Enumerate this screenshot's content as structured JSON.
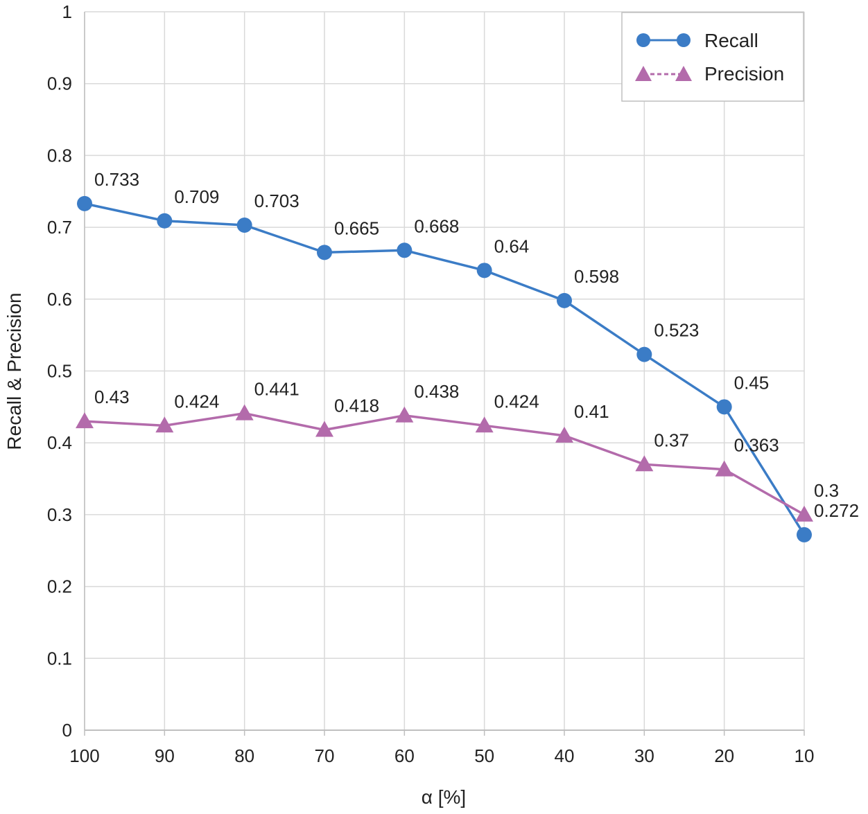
{
  "chart_data": {
    "type": "line",
    "title": "",
    "xlabel": "α [%]",
    "ylabel": "Recall & Precision",
    "categories": [
      "100",
      "90",
      "80",
      "70",
      "60",
      "50",
      "40",
      "30",
      "20",
      "10"
    ],
    "ylim": [
      0,
      1
    ],
    "yticks": [
      "0",
      "0.1",
      "0.2",
      "0.3",
      "0.4",
      "0.5",
      "0.6",
      "0.7",
      "0.8",
      "0.9",
      "1"
    ],
    "grid": true,
    "legend_position": "top-right",
    "series": [
      {
        "name": "Recall",
        "marker": "circle",
        "color": "#3b7cc6",
        "values": [
          0.733,
          0.709,
          0.703,
          0.665,
          0.668,
          0.64,
          0.598,
          0.523,
          0.45,
          0.272
        ],
        "labels": [
          "0.733",
          "0.709",
          "0.703",
          "0.665",
          "0.668",
          "0.64",
          "0.598",
          "0.523",
          "0.45",
          "0.272"
        ]
      },
      {
        "name": "Precision",
        "marker": "triangle",
        "color": "#b36bab",
        "values": [
          0.43,
          0.424,
          0.441,
          0.418,
          0.438,
          0.424,
          0.41,
          0.37,
          0.363,
          0.3
        ],
        "labels": [
          "0.43",
          "0.424",
          "0.441",
          "0.418",
          "0.438",
          "0.424",
          "0.41",
          "0.37",
          "0.363",
          "0.3"
        ]
      }
    ]
  }
}
